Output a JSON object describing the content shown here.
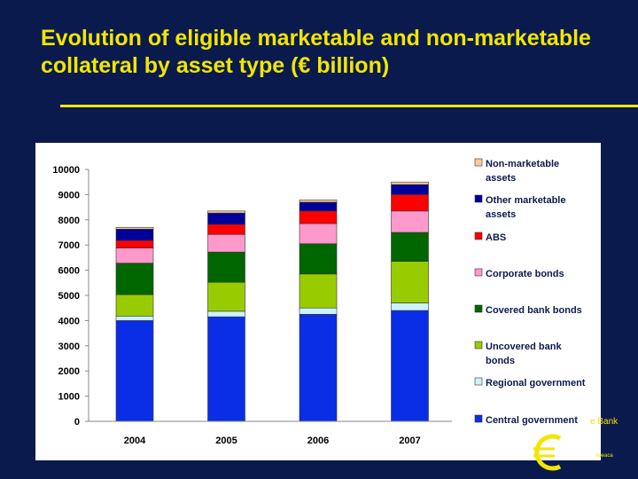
{
  "slide": {
    "title": "Evolution of eligible marketable and non-marketable collateral by asset type (€ billion)",
    "footer_bank": "e Bank",
    "footer_sub": "opeaca"
  },
  "colors": {
    "background": "#0a1a4d",
    "title": "#f2e600"
  },
  "chart_data": {
    "type": "bar",
    "stacked": true,
    "title": "",
    "xlabel": "",
    "ylabel": "",
    "categories": [
      "2004",
      "2005",
      "2006",
      "2007"
    ],
    "ylim": [
      0,
      10000
    ],
    "yticks": [
      "0",
      "1000",
      "2000",
      "3000",
      "4000",
      "5000",
      "6000",
      "7000",
      "8000",
      "9000",
      "10000"
    ],
    "grid": false,
    "legend_position": "right",
    "series": [
      {
        "name": "Central government",
        "color": "#0a2ee6",
        "values": [
          4000,
          4150,
          4250,
          4400
        ]
      },
      {
        "name": "Regional government",
        "color": "#ccf2ff",
        "values": [
          180,
          220,
          250,
          300
        ]
      },
      {
        "name": "Uncovered bank bonds",
        "color": "#99cc00",
        "values": [
          850,
          1150,
          1350,
          1650
        ]
      },
      {
        "name": "Covered bank bonds",
        "color": "#006600",
        "values": [
          1250,
          1200,
          1200,
          1150
        ]
      },
      {
        "name": "Corporate bonds",
        "color": "#ff99cc",
        "values": [
          600,
          700,
          800,
          850
        ]
      },
      {
        "name": "ABS",
        "color": "#ff0000",
        "values": [
          300,
          400,
          500,
          650
        ]
      },
      {
        "name": "Other marketable assets",
        "color": "#000099",
        "values": [
          450,
          450,
          350,
          400
        ]
      },
      {
        "name": "Non-marketable assets",
        "color": "#ffcc99",
        "values": [
          70,
          80,
          90,
          100
        ]
      }
    ]
  }
}
